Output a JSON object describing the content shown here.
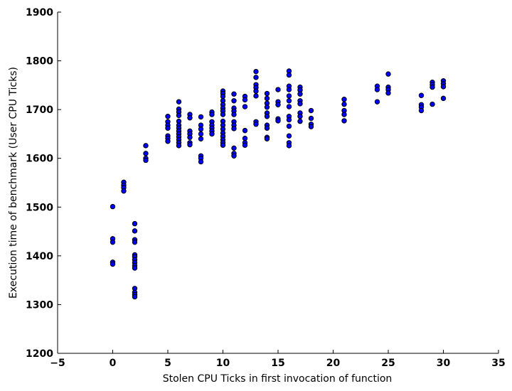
{
  "chart_data": {
    "type": "scatter",
    "title": "",
    "xlabel": "Stolen CPU Ticks in first invocation of function",
    "ylabel": "Execution time of benchmark (User CPU Ticks)",
    "xlim": [
      -5,
      35
    ],
    "ylim": [
      1200,
      1900
    ],
    "xticks": [
      -5,
      0,
      5,
      10,
      15,
      20,
      25,
      30,
      35
    ],
    "xtick_labels": [
      "−5",
      "0",
      "5",
      "10",
      "15",
      "20",
      "25",
      "30",
      "35"
    ],
    "yticks": [
      1200,
      1300,
      1400,
      1500,
      1600,
      1700,
      1800,
      1900
    ],
    "ytick_labels": [
      "1200",
      "1300",
      "1400",
      "1500",
      "1600",
      "1700",
      "1800",
      "1900"
    ],
    "grid": false,
    "marker_color": "#0000ff",
    "points": [
      [
        0,
        1501
      ],
      [
        0,
        1435
      ],
      [
        0,
        1428
      ],
      [
        0,
        1387
      ],
      [
        0,
        1383
      ],
      [
        1,
        1551
      ],
      [
        1,
        1545
      ],
      [
        1,
        1540
      ],
      [
        1,
        1533
      ],
      [
        2,
        1466
      ],
      [
        2,
        1451
      ],
      [
        2,
        1433
      ],
      [
        2,
        1428
      ],
      [
        2,
        1402
      ],
      [
        2,
        1398
      ],
      [
        2,
        1392
      ],
      [
        2,
        1386
      ],
      [
        2,
        1380
      ],
      [
        2,
        1375
      ],
      [
        2,
        1333
      ],
      [
        2,
        1325
      ],
      [
        2,
        1320
      ],
      [
        2,
        1316
      ],
      [
        3,
        1626
      ],
      [
        3,
        1610
      ],
      [
        3,
        1600
      ],
      [
        3,
        1596
      ],
      [
        5,
        1686
      ],
      [
        5,
        1675
      ],
      [
        5,
        1668
      ],
      [
        5,
        1662
      ],
      [
        5,
        1646
      ],
      [
        5,
        1641
      ],
      [
        5,
        1635
      ],
      [
        6,
        1716
      ],
      [
        6,
        1701
      ],
      [
        6,
        1695
      ],
      [
        6,
        1688
      ],
      [
        6,
        1676
      ],
      [
        6,
        1668
      ],
      [
        6,
        1662
      ],
      [
        6,
        1656
      ],
      [
        6,
        1650
      ],
      [
        6,
        1644
      ],
      [
        6,
        1638
      ],
      [
        6,
        1632
      ],
      [
        6,
        1626
      ],
      [
        7,
        1690
      ],
      [
        7,
        1683
      ],
      [
        7,
        1656
      ],
      [
        7,
        1650
      ],
      [
        7,
        1643
      ],
      [
        7,
        1632
      ],
      [
        7,
        1628
      ],
      [
        8,
        1685
      ],
      [
        8,
        1668
      ],
      [
        8,
        1660
      ],
      [
        8,
        1650
      ],
      [
        8,
        1640
      ],
      [
        8,
        1605
      ],
      [
        8,
        1600
      ],
      [
        8,
        1593
      ],
      [
        9,
        1695
      ],
      [
        9,
        1690
      ],
      [
        9,
        1675
      ],
      [
        9,
        1668
      ],
      [
        9,
        1662
      ],
      [
        9,
        1656
      ],
      [
        9,
        1650
      ],
      [
        10,
        1738
      ],
      [
        10,
        1733
      ],
      [
        10,
        1727
      ],
      [
        10,
        1718
      ],
      [
        10,
        1710
      ],
      [
        10,
        1703
      ],
      [
        10,
        1697
      ],
      [
        10,
        1690
      ],
      [
        10,
        1676
      ],
      [
        10,
        1668
      ],
      [
        10,
        1660
      ],
      [
        10,
        1652
      ],
      [
        10,
        1645
      ],
      [
        10,
        1638
      ],
      [
        10,
        1632
      ],
      [
        10,
        1627
      ],
      [
        11,
        1732
      ],
      [
        11,
        1718
      ],
      [
        11,
        1703
      ],
      [
        11,
        1697
      ],
      [
        11,
        1690
      ],
      [
        11,
        1675
      ],
      [
        11,
        1668
      ],
      [
        11,
        1661
      ],
      [
        11,
        1621
      ],
      [
        11,
        1610
      ],
      [
        11,
        1605
      ],
      [
        12,
        1727
      ],
      [
        12,
        1720
      ],
      [
        12,
        1706
      ],
      [
        12,
        1657
      ],
      [
        12,
        1641
      ],
      [
        12,
        1632
      ],
      [
        12,
        1627
      ],
      [
        13,
        1778
      ],
      [
        13,
        1766
      ],
      [
        13,
        1751
      ],
      [
        13,
        1745
      ],
      [
        13,
        1738
      ],
      [
        13,
        1728
      ],
      [
        13,
        1675
      ],
      [
        13,
        1670
      ],
      [
        14,
        1733
      ],
      [
        14,
        1723
      ],
      [
        14,
        1713
      ],
      [
        14,
        1705
      ],
      [
        14,
        1693
      ],
      [
        14,
        1686
      ],
      [
        14,
        1668
      ],
      [
        14,
        1662
      ],
      [
        14,
        1643
      ],
      [
        14,
        1640
      ],
      [
        15,
        1741
      ],
      [
        15,
        1716
      ],
      [
        15,
        1710
      ],
      [
        15,
        1681
      ],
      [
        15,
        1677
      ],
      [
        16,
        1779
      ],
      [
        16,
        1771
      ],
      [
        16,
        1748
      ],
      [
        16,
        1741
      ],
      [
        16,
        1728
      ],
      [
        16,
        1718
      ],
      [
        16,
        1706
      ],
      [
        16,
        1686
      ],
      [
        16,
        1679
      ],
      [
        16,
        1666
      ],
      [
        16,
        1646
      ],
      [
        16,
        1632
      ],
      [
        16,
        1626
      ],
      [
        17,
        1746
      ],
      [
        17,
        1740
      ],
      [
        17,
        1732
      ],
      [
        17,
        1718
      ],
      [
        17,
        1712
      ],
      [
        17,
        1693
      ],
      [
        17,
        1686
      ],
      [
        17,
        1676
      ],
      [
        18,
        1698
      ],
      [
        18,
        1682
      ],
      [
        18,
        1670
      ],
      [
        18,
        1665
      ],
      [
        21,
        1721
      ],
      [
        21,
        1711
      ],
      [
        21,
        1698
      ],
      [
        21,
        1690
      ],
      [
        21,
        1677
      ],
      [
        24,
        1748
      ],
      [
        24,
        1741
      ],
      [
        24,
        1716
      ],
      [
        25,
        1773
      ],
      [
        25,
        1746
      ],
      [
        25,
        1741
      ],
      [
        25,
        1734
      ],
      [
        28,
        1729
      ],
      [
        28,
        1710
      ],
      [
        28,
        1705
      ],
      [
        28,
        1698
      ],
      [
        29,
        1756
      ],
      [
        29,
        1751
      ],
      [
        29,
        1746
      ],
      [
        29,
        1711
      ],
      [
        30,
        1759
      ],
      [
        30,
        1753
      ],
      [
        30,
        1747
      ],
      [
        30,
        1723
      ]
    ]
  }
}
